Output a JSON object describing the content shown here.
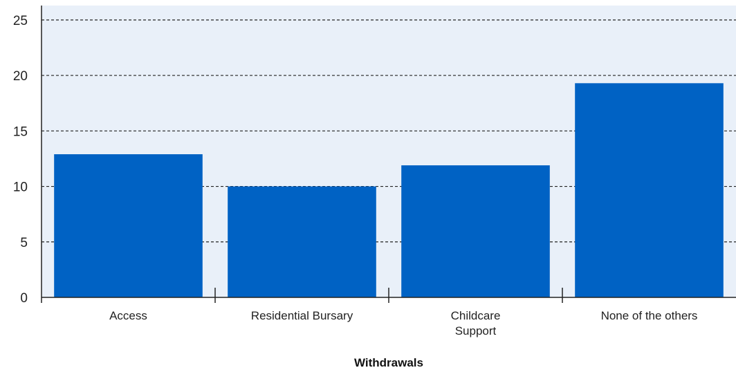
{
  "colors": {
    "bar": "#0062c4",
    "plot_background": "#e9f0f9",
    "gridline": "#222222",
    "axis": "#222222"
  },
  "chart_data": {
    "type": "bar",
    "categories": [
      [
        "Access"
      ],
      [
        "Residential Bursary"
      ],
      [
        "Childcare",
        "Support"
      ],
      [
        "None of the others"
      ]
    ],
    "series": [
      {
        "values": [
          12.9,
          10.0,
          11.9,
          19.3
        ]
      }
    ],
    "xlabel": "Withdrawals",
    "ylabel": "",
    "ylim": [
      0,
      26.3
    ],
    "yticks": [
      0,
      5,
      10,
      15,
      20,
      25
    ],
    "grid": "horizontal dashed",
    "legend": "none"
  }
}
